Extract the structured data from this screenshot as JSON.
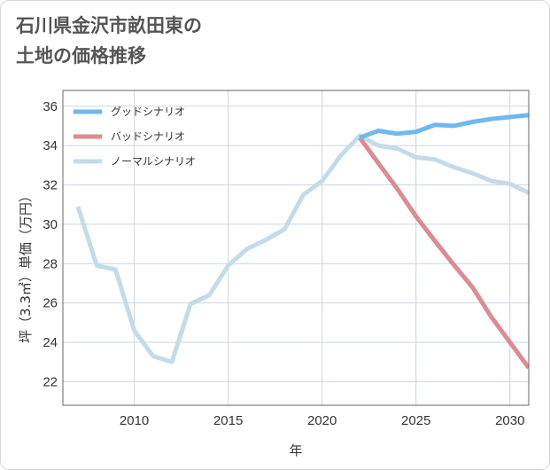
{
  "title_lines": [
    "石川県金沢市畝田東の",
    "土地の価格推移"
  ],
  "chart_data": {
    "type": "line",
    "xlabel": "年",
    "ylabel": "坪（3.3㎡）単価（万円）",
    "xlim": [
      2006.2,
      2031
    ],
    "ylim": [
      20.8,
      36.8
    ],
    "x_ticks": [
      2010,
      2015,
      2020,
      2025,
      2030
    ],
    "y_ticks": [
      22,
      24,
      26,
      28,
      30,
      32,
      34,
      36
    ],
    "grid": true,
    "legend_position": "top-left",
    "series": [
      {
        "name": "グッドシナリオ",
        "color": "#6fb9ef",
        "x": [
          2022,
          2023,
          2024,
          2025,
          2026,
          2027,
          2028,
          2029,
          2030,
          2031
        ],
        "y": [
          34.4,
          34.75,
          34.6,
          34.7,
          35.05,
          35.0,
          35.2,
          35.35,
          35.45,
          35.55
        ]
      },
      {
        "name": "バッドシナリオ",
        "color": "#de8a92",
        "x": [
          2022,
          2023,
          2024,
          2025,
          2026,
          2027,
          2028,
          2029,
          2030,
          2031
        ],
        "y": [
          34.4,
          33.1,
          31.8,
          30.4,
          29.15,
          27.95,
          26.8,
          25.3,
          24.0,
          22.7
        ]
      },
      {
        "name": "ノーマルシナリオ",
        "color": "#c3dcea",
        "x": [
          2007,
          2008,
          2009,
          2010,
          2011,
          2012,
          2013,
          2014,
          2015,
          2016,
          2017,
          2018,
          2019,
          2020,
          2021,
          2022,
          2023,
          2024,
          2025,
          2026,
          2027,
          2028,
          2029,
          2030,
          2031
        ],
        "y": [
          30.9,
          27.9,
          27.7,
          24.6,
          23.3,
          23.0,
          25.95,
          26.4,
          27.9,
          28.75,
          29.2,
          29.75,
          31.5,
          32.2,
          33.5,
          34.5,
          34.0,
          33.85,
          33.4,
          33.3,
          32.9,
          32.6,
          32.2,
          32.05,
          31.6
        ]
      }
    ]
  }
}
